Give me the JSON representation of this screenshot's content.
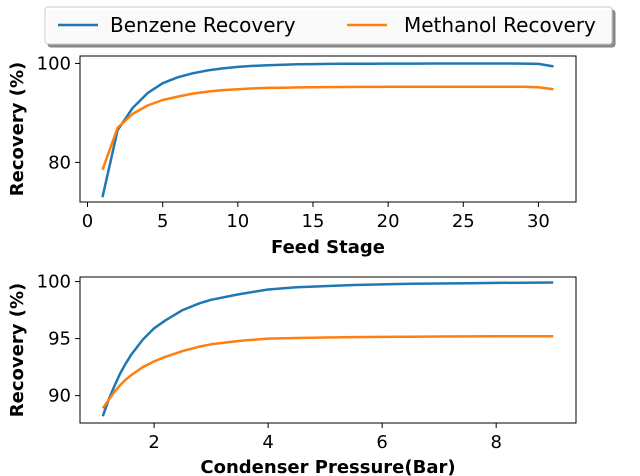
{
  "legend": {
    "placement": "top-center",
    "entries": [
      {
        "label": "Benzene Recovery",
        "color": "#1f77b4"
      },
      {
        "label": "Methanol Recovery",
        "color": "#ff7f0e"
      }
    ]
  },
  "chart_data": [
    {
      "type": "line",
      "xlabel": "Feed Stage",
      "ylabel": "Recovery (%)",
      "xlim": [
        -0.5,
        32.5
      ],
      "ylim": [
        72,
        101.5
      ],
      "xticks": [
        0,
        5,
        10,
        15,
        20,
        25,
        30
      ],
      "yticks": [
        80,
        100
      ],
      "grid": false,
      "series": [
        {
          "name": "Benzene Recovery",
          "color": "#1f77b4",
          "x": [
            1,
            2,
            3,
            4,
            5,
            6,
            7,
            8,
            9,
            10,
            11,
            12,
            13,
            14,
            15,
            16,
            17,
            18,
            19,
            20,
            21,
            22,
            23,
            24,
            25,
            26,
            27,
            28,
            29,
            30,
            31
          ],
          "y": [
            73.0,
            86.5,
            91.0,
            94.0,
            96.0,
            97.2,
            98.0,
            98.6,
            99.0,
            99.3,
            99.5,
            99.65,
            99.75,
            99.82,
            99.87,
            99.9,
            99.92,
            99.94,
            99.95,
            99.96,
            99.97,
            99.97,
            99.98,
            99.98,
            99.98,
            99.98,
            99.98,
            99.98,
            99.97,
            99.9,
            99.4
          ]
        },
        {
          "name": "Methanol Recovery",
          "color": "#ff7f0e",
          "x": [
            1,
            2,
            3,
            4,
            5,
            6,
            7,
            8,
            9,
            10,
            11,
            12,
            13,
            14,
            15,
            16,
            17,
            18,
            19,
            20,
            21,
            22,
            23,
            24,
            25,
            26,
            27,
            28,
            29,
            30,
            31
          ],
          "y": [
            78.5,
            87.0,
            89.8,
            91.5,
            92.6,
            93.3,
            93.9,
            94.3,
            94.6,
            94.8,
            94.95,
            95.05,
            95.1,
            95.15,
            95.2,
            95.22,
            95.24,
            95.25,
            95.26,
            95.27,
            95.28,
            95.28,
            95.29,
            95.29,
            95.29,
            95.29,
            95.29,
            95.29,
            95.28,
            95.2,
            94.8
          ]
        }
      ]
    },
    {
      "type": "line",
      "xlabel": "Condenser Pressure(Bar)",
      "ylabel": "Recovery (%)",
      "xlim": [
        0.7,
        9.4
      ],
      "ylim": [
        87.6,
        100.4
      ],
      "xticks": [
        2,
        4,
        6,
        8
      ],
      "yticks": [
        90,
        95,
        100
      ],
      "grid": false,
      "series": [
        {
          "name": "Benzene Recovery",
          "color": "#1f77b4",
          "x": [
            1.1,
            1.2,
            1.3,
            1.4,
            1.5,
            1.6,
            1.8,
            2.0,
            2.2,
            2.5,
            2.8,
            3.0,
            3.5,
            4.0,
            4.5,
            5.0,
            5.5,
            6.0,
            6.5,
            7.0,
            7.5,
            8.0,
            8.5,
            9.0
          ],
          "y": [
            88.2,
            89.6,
            90.8,
            91.9,
            92.8,
            93.6,
            94.9,
            95.9,
            96.6,
            97.5,
            98.1,
            98.4,
            98.9,
            99.3,
            99.5,
            99.6,
            99.7,
            99.75,
            99.8,
            99.83,
            99.86,
            99.88,
            99.9,
            99.92
          ]
        },
        {
          "name": "Methanol Recovery",
          "color": "#ff7f0e",
          "x": [
            1.1,
            1.2,
            1.3,
            1.4,
            1.5,
            1.6,
            1.8,
            2.0,
            2.2,
            2.5,
            2.8,
            3.0,
            3.5,
            4.0,
            4.5,
            5.0,
            5.5,
            6.0,
            6.5,
            7.0,
            7.5,
            8.0,
            8.5,
            9.0
          ],
          "y": [
            88.9,
            89.6,
            90.3,
            90.9,
            91.4,
            91.8,
            92.5,
            93.0,
            93.4,
            93.9,
            94.3,
            94.5,
            94.8,
            95.0,
            95.05,
            95.1,
            95.13,
            95.15,
            95.17,
            95.18,
            95.19,
            95.2,
            95.2,
            95.21
          ]
        }
      ]
    }
  ]
}
